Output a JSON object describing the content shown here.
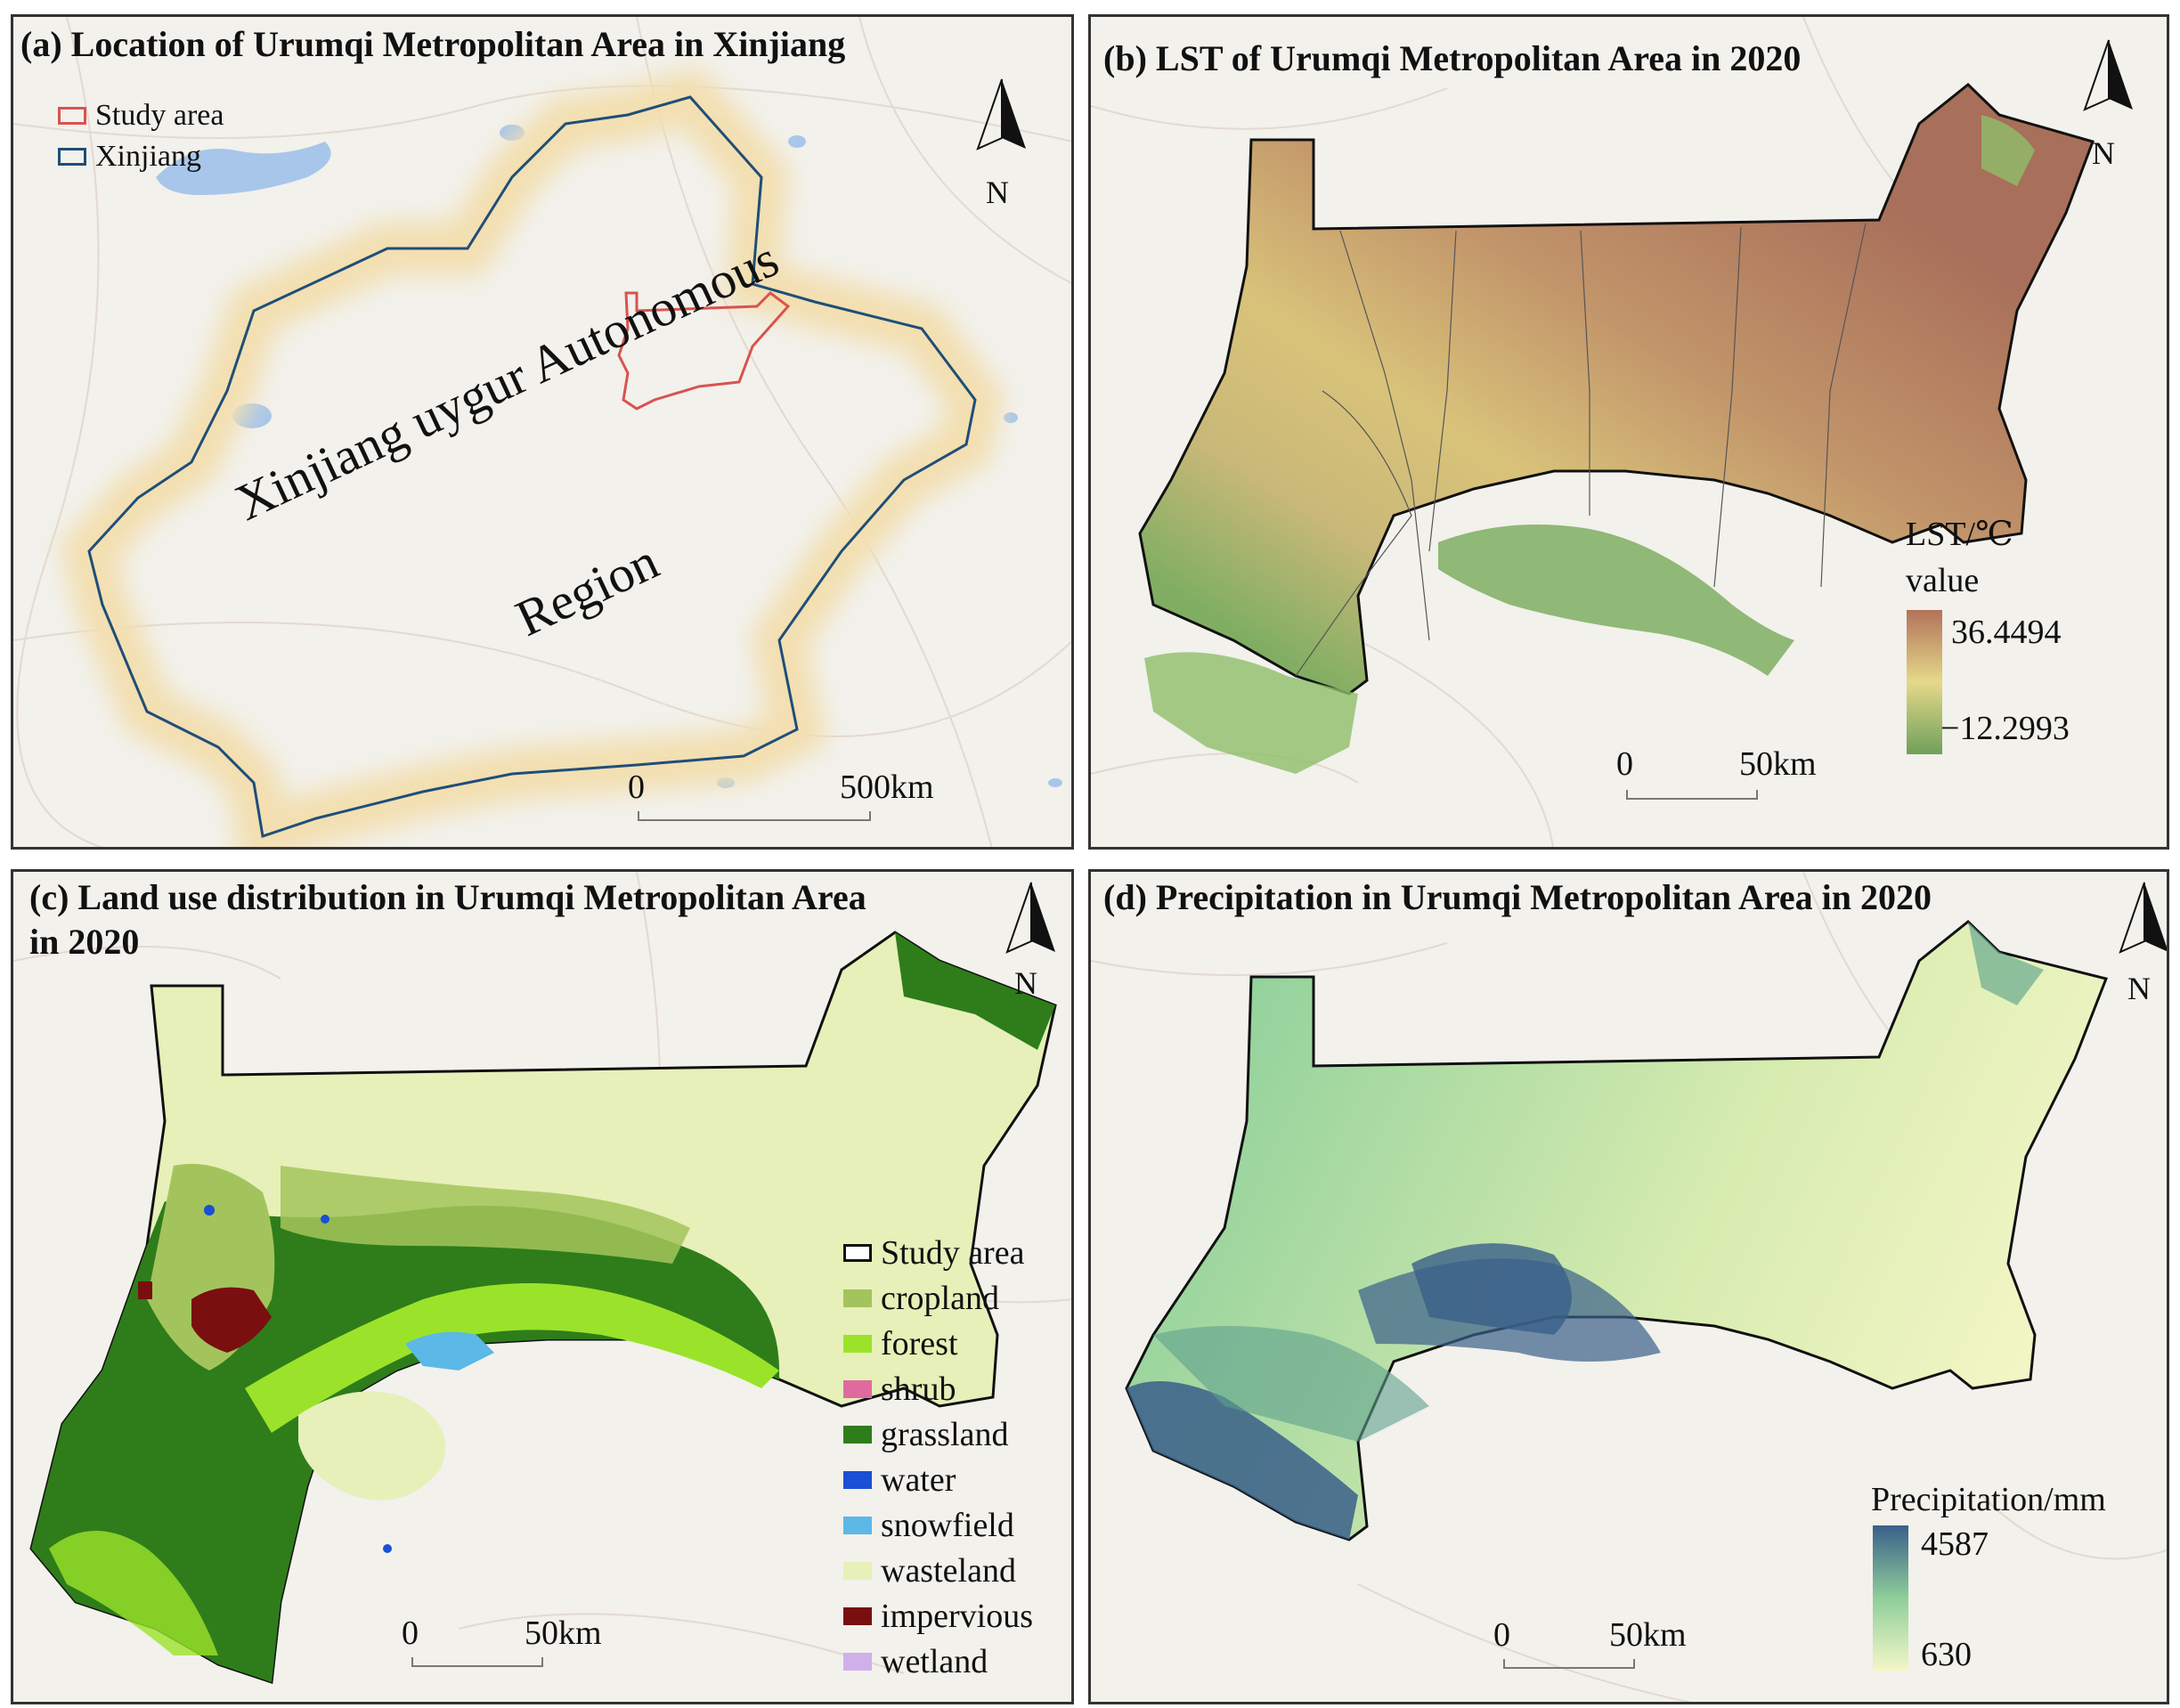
{
  "panels": {
    "a": {
      "title": "(a) Location of Urumqi Metropolitan Area in Xinjiang",
      "legend": [
        {
          "label": "Study area",
          "color": "#d9534f"
        },
        {
          "label": "Xinjiang",
          "color": "#1f4e79"
        }
      ],
      "region_label_line1": "Xinjiang  uygur  Autonomous",
      "region_label_line2": "Region",
      "scale_start": "0",
      "scale_end": "500km",
      "north": "N"
    },
    "b": {
      "title": "(b) LST of Urumqi Metropolitan Area in 2020",
      "legend_title1": "LST/℃",
      "legend_title2": "value",
      "max_label": "36.4494",
      "min_label": "−12.2993",
      "color_high": "#b2735a",
      "color_mid": "#e6d88a",
      "color_low": "#6fa05a",
      "scale_start": "0",
      "scale_end": "50km",
      "north": "N"
    },
    "c": {
      "title_line1": "(c) Land use distribution in Urumqi Metropolitan Area",
      "title_line2": "in 2020",
      "legend": [
        {
          "label": "Study area",
          "color": "#ffffff",
          "outline": true
        },
        {
          "label": "cropland",
          "color": "#a3c45c"
        },
        {
          "label": "forest",
          "color": "#9be32a"
        },
        {
          "label": "shrub",
          "color": "#e06aa0"
        },
        {
          "label": "grassland",
          "color": "#2e7d1a"
        },
        {
          "label": "water",
          "color": "#1a4fd6"
        },
        {
          "label": "snowfield",
          "color": "#5cb8e6"
        },
        {
          "label": "wasteland",
          "color": "#e6f0b8"
        },
        {
          "label": "impervious",
          "color": "#7a0f0f"
        },
        {
          "label": "wetland",
          "color": "#d0b0e8"
        }
      ],
      "scale_start": "0",
      "scale_end": "50km",
      "north": "N"
    },
    "d": {
      "title": "(d) Precipitation in Urumqi Metropolitan Area in 2020",
      "legend_title": "Precipitation/mm",
      "max_label": "4587",
      "min_label": "630",
      "color_high": "#3a5f8a",
      "color_mid": "#8fcf9a",
      "color_low": "#f5f7c8",
      "scale_start": "0",
      "scale_end": "50km",
      "north": "N"
    }
  }
}
